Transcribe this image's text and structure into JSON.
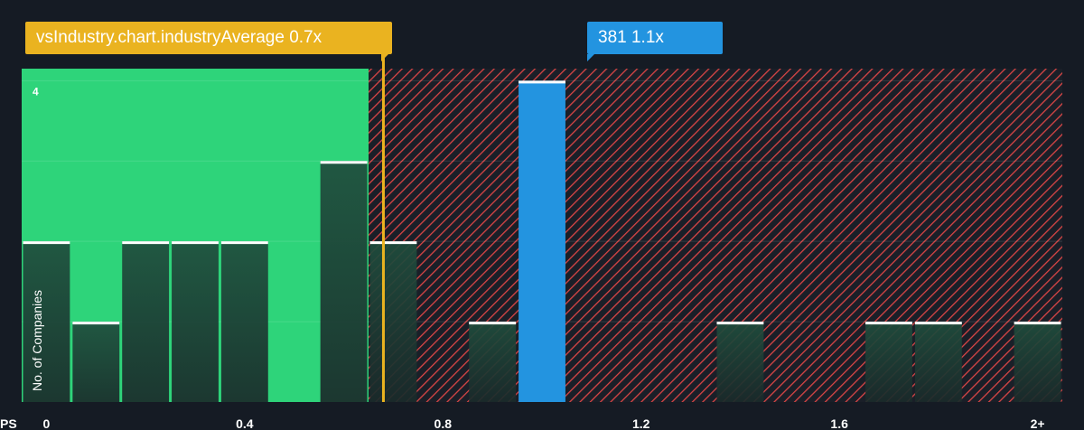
{
  "colors": {
    "background": "#151b24",
    "fair_zone": "#2ed47a",
    "overvalued_zone": "#e04b4b",
    "bar_fill": "#1e3a33",
    "bar_cap": "#ffffff",
    "company_bar": "#2394e0",
    "industry_average_line": "#eab320",
    "axis_text": "#ffffff"
  },
  "callouts": {
    "industry_average": "vsIndustry.chart.industryAverage 0.7x",
    "company": "381 1.1x"
  },
  "chart_data": {
    "type": "bar",
    "xlabel": "PS",
    "ylabel": "No. of Companies",
    "x_ticks": [
      "0",
      "0.4",
      "0.8",
      "1.2",
      "1.6",
      "2+"
    ],
    "x_tick_values": [
      0,
      0.4,
      0.8,
      1.2,
      1.6,
      2.0
    ],
    "xlim": [
      -0.05,
      2.05
    ],
    "y_ticks": [
      "4"
    ],
    "y_tick_values": [
      4
    ],
    "ylim": [
      0,
      4.15
    ],
    "grid": true,
    "bin_width": 0.1,
    "bins": [
      {
        "x": 0.0,
        "count": 2
      },
      {
        "x": 0.1,
        "count": 1
      },
      {
        "x": 0.2,
        "count": 2
      },
      {
        "x": 0.3,
        "count": 2
      },
      {
        "x": 0.4,
        "count": 2
      },
      {
        "x": 0.6,
        "count": 3
      },
      {
        "x": 0.7,
        "count": 2
      },
      {
        "x": 0.9,
        "count": 1
      },
      {
        "x": 1.0,
        "count": 4,
        "highlight": true
      },
      {
        "x": 1.4,
        "count": 1
      },
      {
        "x": 1.7,
        "count": 1
      },
      {
        "x": 1.8,
        "count": 1
      },
      {
        "x": 2.0,
        "count": 1
      }
    ],
    "industry_average": 0.68,
    "company_value": 1.1,
    "fair_zone_end": 0.65
  }
}
